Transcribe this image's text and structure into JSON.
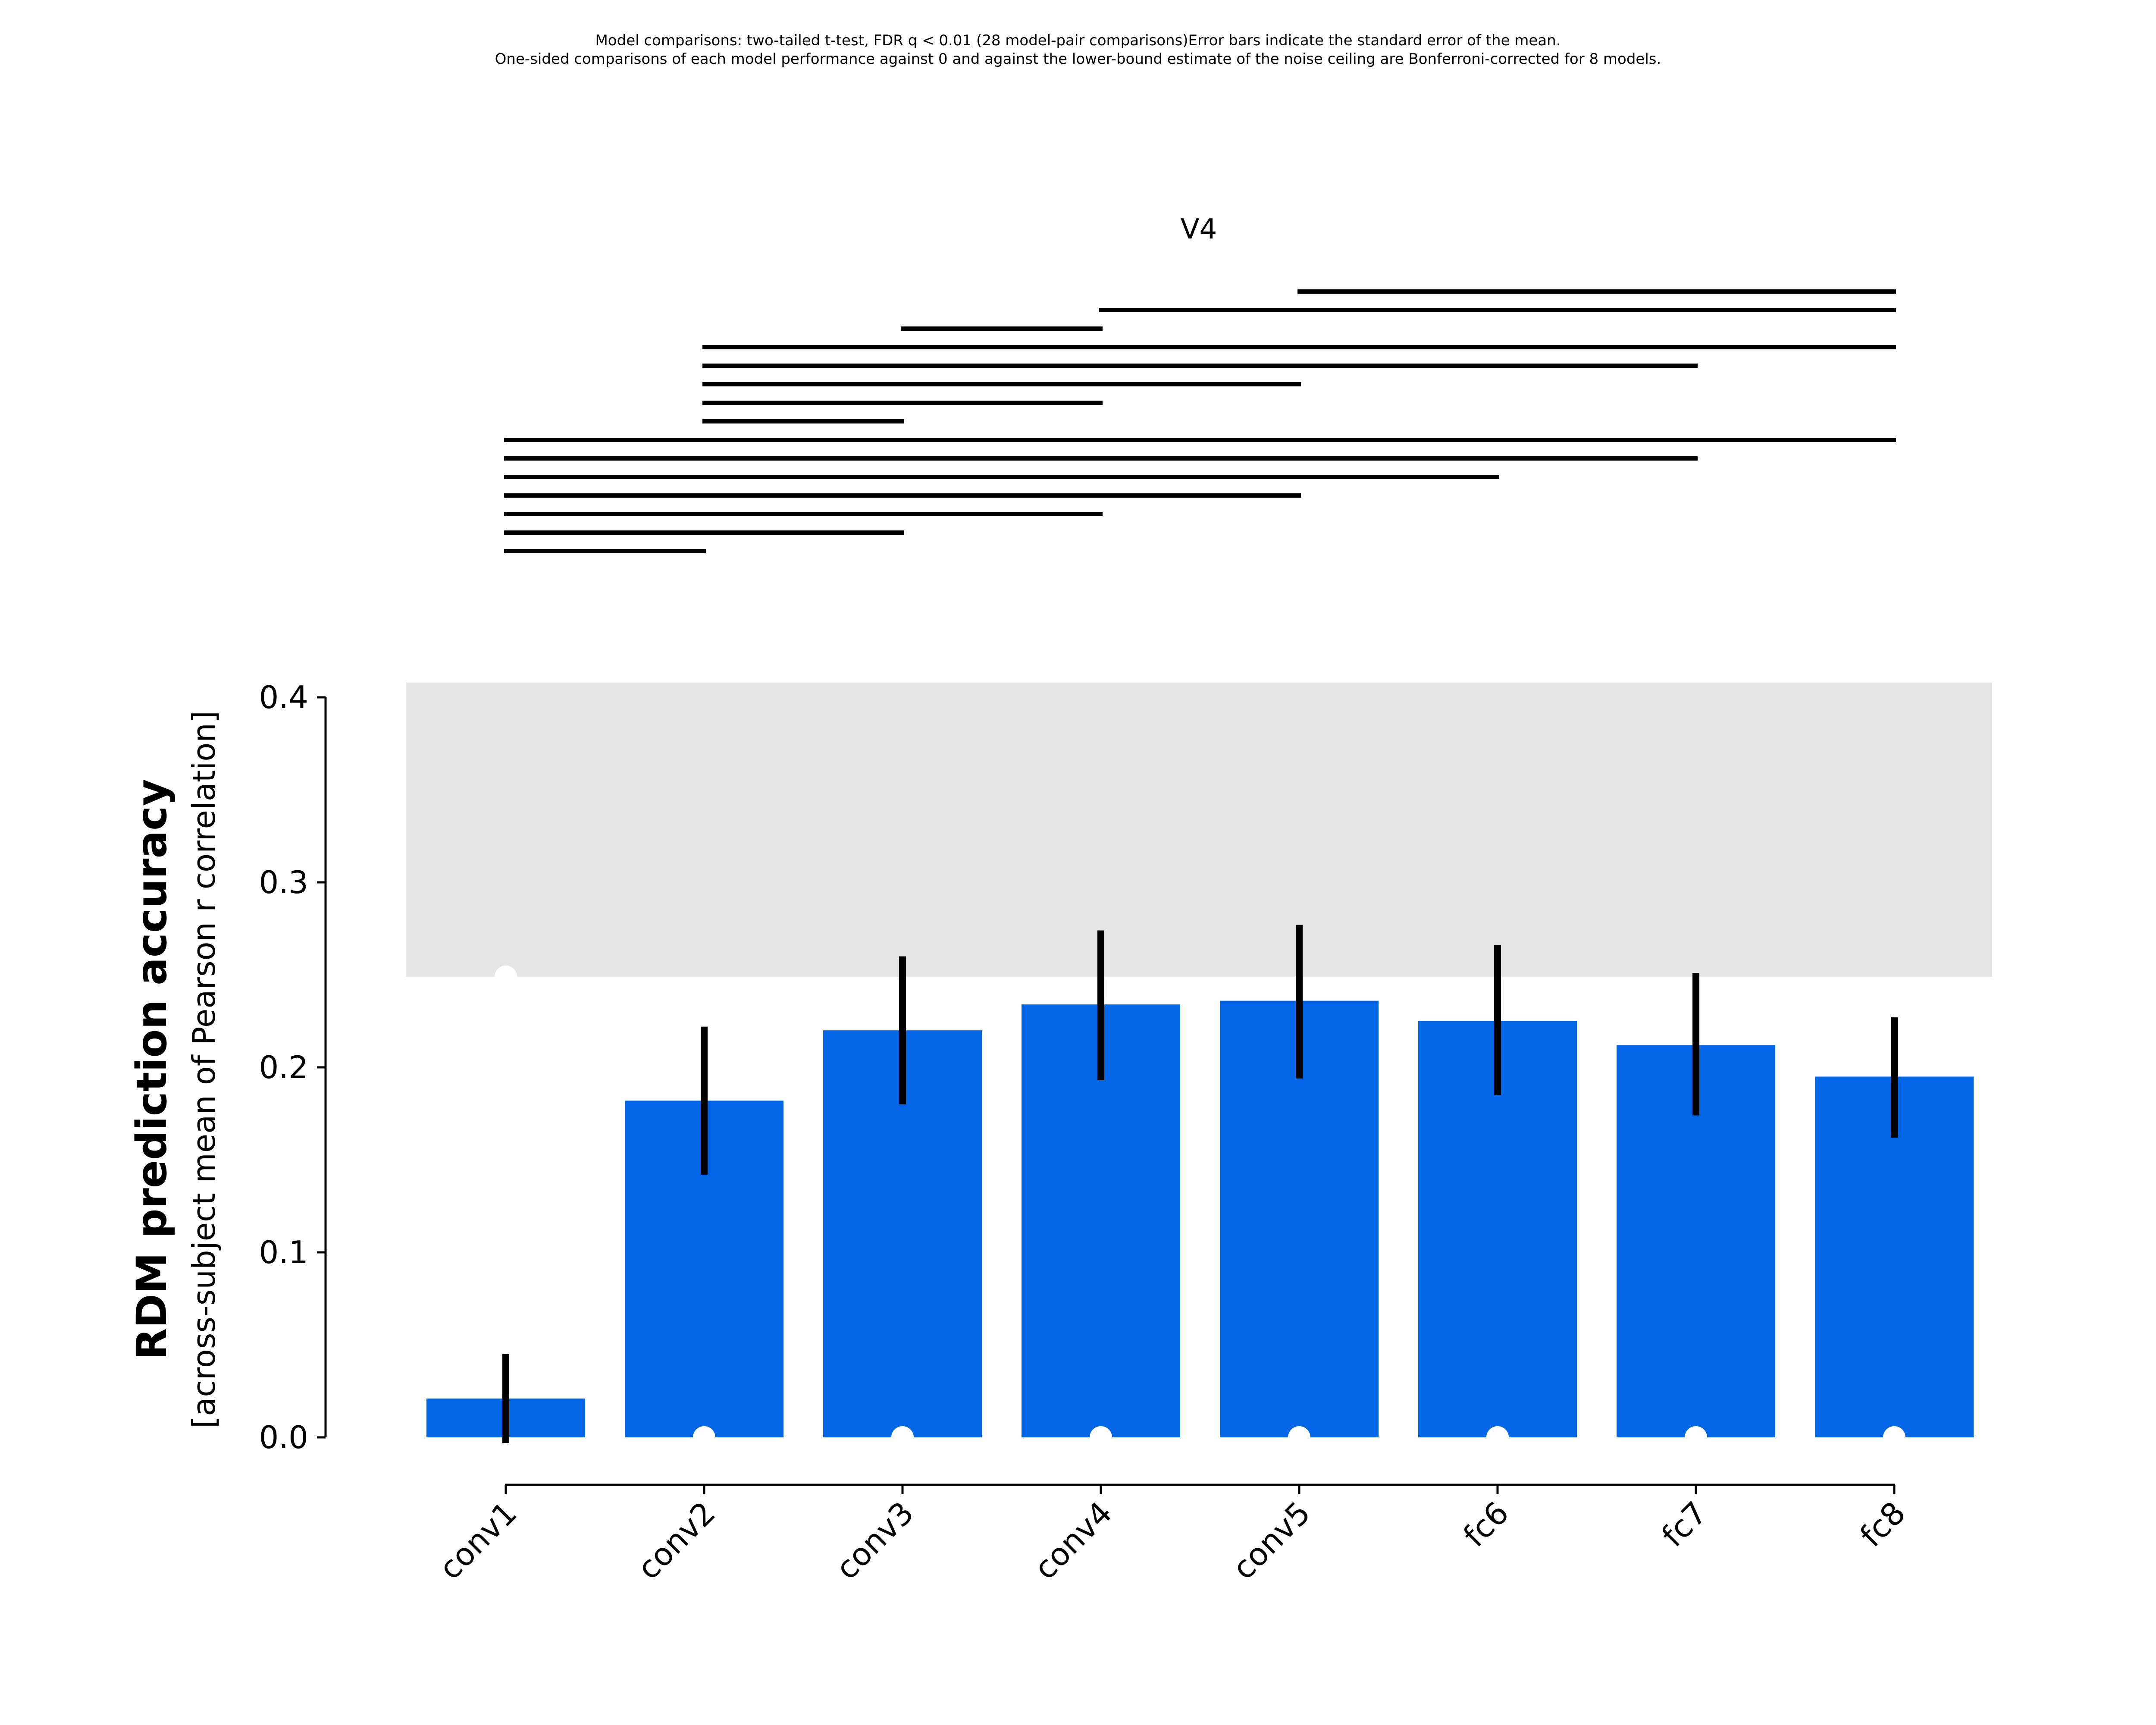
{
  "caption": {
    "line1": "Model comparisons: two-tailed t-test, FDR q < 0.01 (28 model-pair comparisons)Error bars indicate the standard error of the mean.",
    "line2": "One-sided comparisons of each model performance against 0 and against the lower-bound estimate of the noise ceiling are Bonferroni-corrected for 8 models."
  },
  "colors": {
    "bar": "#0366e6",
    "noise_ceiling": "#e5e5e5",
    "error_bar": "#000000",
    "marker": "#ffffff"
  },
  "chart_data": {
    "type": "bar",
    "title": "V4",
    "ylabel": "RDM prediction accuracy",
    "ylabel_sub": "[across-subject mean of Pearson r correlation]",
    "xlabel": "",
    "categories": [
      "conv1",
      "conv2",
      "conv3",
      "conv4",
      "conv5",
      "fc6",
      "fc7",
      "fc8"
    ],
    "values": [
      0.021,
      0.182,
      0.22,
      0.234,
      0.236,
      0.225,
      0.212,
      0.195
    ],
    "error_low": [
      -0.003,
      0.142,
      0.18,
      0.193,
      0.194,
      0.185,
      0.174,
      0.162
    ],
    "error_high": [
      0.045,
      0.222,
      0.26,
      0.274,
      0.277,
      0.266,
      0.251,
      0.227
    ],
    "yticks": [
      0.0,
      0.1,
      0.2,
      0.3,
      0.4
    ],
    "ytick_labels": [
      "0.0",
      "0.1",
      "0.2",
      "0.3",
      "0.4"
    ],
    "ylim": [
      0,
      0.4
    ],
    "noise_ceiling": {
      "lower": 0.249,
      "upper": 0.408
    },
    "not_above_zero_markers": [],
    "above_zero_markers": [
      1,
      2,
      3,
      4,
      5,
      6,
      7
    ],
    "below_ceiling_markers": [
      0
    ],
    "pairwise_significance": [
      [
        4,
        7
      ],
      [
        3,
        7
      ],
      [
        2,
        3
      ],
      [
        1,
        7
      ],
      [
        1,
        6
      ],
      [
        1,
        4
      ],
      [
        1,
        3
      ],
      [
        1,
        2
      ],
      [
        0,
        7
      ],
      [
        0,
        6
      ],
      [
        0,
        5
      ],
      [
        0,
        4
      ],
      [
        0,
        3
      ],
      [
        0,
        2
      ],
      [
        0,
        1
      ]
    ],
    "grid": false,
    "legend": "none"
  }
}
